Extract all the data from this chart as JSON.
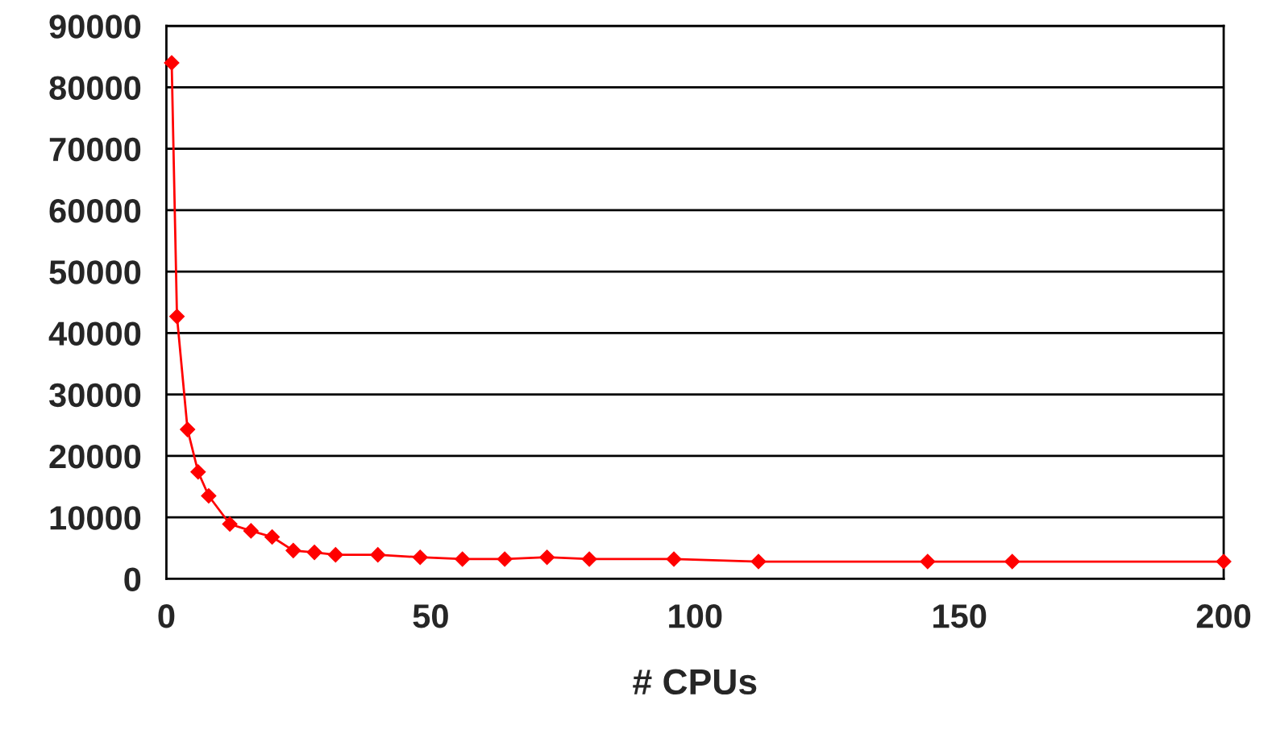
{
  "chart_data": {
    "type": "line",
    "xlabel": "# CPUs",
    "x": [
      1,
      2,
      4,
      6,
      8,
      12,
      16,
      20,
      24,
      28,
      32,
      40,
      48,
      56,
      64,
      72,
      80,
      96,
      112,
      144,
      160,
      200
    ],
    "series": [
      {
        "color": "#ff0000",
        "values": [
          84000,
          42700,
          24300,
          17400,
          13500,
          8900,
          7800,
          6800,
          4600,
          4300,
          3900,
          3900,
          3500,
          3200,
          3200,
          3500,
          3200,
          3200,
          2800,
          2800,
          2800,
          2800
        ]
      }
    ],
    "xlim": [
      0,
      200
    ],
    "xticks": [
      0,
      50,
      100,
      150,
      200
    ],
    "ylim": [
      0,
      90000
    ],
    "yticks": [
      0,
      10000,
      20000,
      30000,
      40000,
      50000,
      60000,
      70000,
      80000,
      90000
    ],
    "grid": "y",
    "marker": "diamond",
    "line_style": "solid",
    "legend": false
  }
}
